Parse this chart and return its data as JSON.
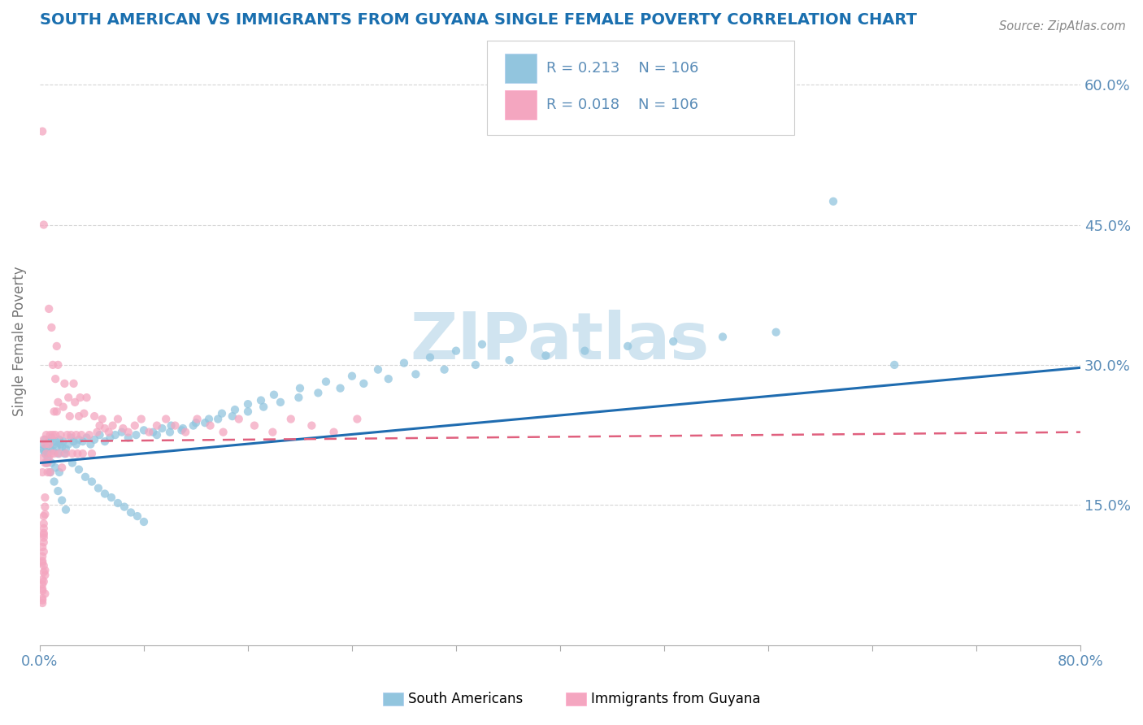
{
  "title": "SOUTH AMERICAN VS IMMIGRANTS FROM GUYANA SINGLE FEMALE POVERTY CORRELATION CHART",
  "source_text": "Source: ZipAtlas.com",
  "ylabel": "Single Female Poverty",
  "xlim": [
    0.0,
    0.8
  ],
  "ylim": [
    0.0,
    0.65
  ],
  "y_ticks": [
    0.15,
    0.3,
    0.45,
    0.6
  ],
  "y_tick_labels": [
    "15.0%",
    "30.0%",
    "45.0%",
    "60.0%"
  ],
  "legend_R": [
    "0.213",
    "0.018"
  ],
  "legend_N": [
    "106",
    "106"
  ],
  "blue_color": "#92c5de",
  "pink_color": "#f4a6c0",
  "blue_line_color": "#1f6cb0",
  "pink_line_color": "#e0607e",
  "watermark": "ZIPatlas",
  "watermark_color": "#d0e4f0",
  "title_color": "#1a6faf",
  "axis_label_color": "#777777",
  "tick_label_color": "#5b8db8",
  "blue_trend": [
    0.195,
    0.297
  ],
  "pink_trend": [
    0.218,
    0.228
  ],
  "south_americans_x": [
    0.002,
    0.003,
    0.004,
    0.005,
    0.006,
    0.007,
    0.008,
    0.009,
    0.01,
    0.011,
    0.012,
    0.013,
    0.014,
    0.015,
    0.016,
    0.017,
    0.018,
    0.019,
    0.02,
    0.022,
    0.024,
    0.026,
    0.028,
    0.03,
    0.033,
    0.036,
    0.039,
    0.042,
    0.046,
    0.05,
    0.054,
    0.058,
    0.063,
    0.068,
    0.074,
    0.08,
    0.087,
    0.094,
    0.101,
    0.109,
    0.118,
    0.127,
    0.137,
    0.148,
    0.16,
    0.172,
    0.185,
    0.199,
    0.214,
    0.231,
    0.249,
    0.268,
    0.289,
    0.311,
    0.335,
    0.361,
    0.389,
    0.419,
    0.452,
    0.487,
    0.525,
    0.566,
    0.61,
    0.657,
    0.005,
    0.008,
    0.011,
    0.014,
    0.017,
    0.02,
    0.025,
    0.03,
    0.035,
    0.04,
    0.045,
    0.05,
    0.055,
    0.06,
    0.065,
    0.07,
    0.075,
    0.08,
    0.09,
    0.1,
    0.11,
    0.12,
    0.13,
    0.14,
    0.15,
    0.16,
    0.17,
    0.18,
    0.2,
    0.22,
    0.24,
    0.26,
    0.28,
    0.3,
    0.32,
    0.34,
    0.006,
    0.009,
    0.012,
    0.015,
    0.003,
    0.004
  ],
  "south_americans_y": [
    0.215,
    0.208,
    0.22,
    0.212,
    0.205,
    0.218,
    0.21,
    0.222,
    0.208,
    0.215,
    0.218,
    0.212,
    0.205,
    0.22,
    0.215,
    0.212,
    0.218,
    0.205,
    0.21,
    0.215,
    0.222,
    0.218,
    0.215,
    0.22,
    0.218,
    0.222,
    0.215,
    0.22,
    0.225,
    0.218,
    0.222,
    0.225,
    0.228,
    0.222,
    0.225,
    0.23,
    0.228,
    0.232,
    0.235,
    0.23,
    0.235,
    0.238,
    0.242,
    0.245,
    0.25,
    0.255,
    0.26,
    0.265,
    0.27,
    0.275,
    0.28,
    0.285,
    0.29,
    0.295,
    0.3,
    0.305,
    0.31,
    0.315,
    0.32,
    0.325,
    0.33,
    0.335,
    0.475,
    0.3,
    0.195,
    0.185,
    0.175,
    0.165,
    0.155,
    0.145,
    0.195,
    0.188,
    0.18,
    0.175,
    0.168,
    0.162,
    0.158,
    0.152,
    0.148,
    0.142,
    0.138,
    0.132,
    0.225,
    0.228,
    0.232,
    0.238,
    0.242,
    0.248,
    0.252,
    0.258,
    0.262,
    0.268,
    0.275,
    0.282,
    0.288,
    0.295,
    0.302,
    0.308,
    0.315,
    0.322,
    0.2,
    0.195,
    0.19,
    0.185,
    0.21,
    0.205
  ],
  "guyana_x": [
    0.001,
    0.002,
    0.002,
    0.003,
    0.003,
    0.004,
    0.004,
    0.005,
    0.005,
    0.006,
    0.006,
    0.007,
    0.007,
    0.007,
    0.008,
    0.008,
    0.009,
    0.009,
    0.01,
    0.01,
    0.011,
    0.011,
    0.012,
    0.012,
    0.013,
    0.013,
    0.014,
    0.014,
    0.015,
    0.016,
    0.017,
    0.018,
    0.019,
    0.02,
    0.021,
    0.022,
    0.023,
    0.024,
    0.025,
    0.026,
    0.027,
    0.028,
    0.029,
    0.03,
    0.031,
    0.032,
    0.033,
    0.034,
    0.036,
    0.038,
    0.04,
    0.042,
    0.044,
    0.046,
    0.048,
    0.05,
    0.053,
    0.056,
    0.06,
    0.064,
    0.068,
    0.073,
    0.078,
    0.084,
    0.09,
    0.097,
    0.104,
    0.112,
    0.121,
    0.131,
    0.141,
    0.153,
    0.165,
    0.179,
    0.193,
    0.209,
    0.226,
    0.244,
    0.002,
    0.003,
    0.004,
    0.002,
    0.003,
    0.004,
    0.002,
    0.003,
    0.002,
    0.003,
    0.004,
    0.003,
    0.002,
    0.003,
    0.002,
    0.003,
    0.002,
    0.004,
    0.003,
    0.002,
    0.003,
    0.004,
    0.002,
    0.003,
    0.002,
    0.003,
    0.002,
    0.004
  ],
  "guyana_y": [
    0.2,
    0.185,
    0.55,
    0.45,
    0.22,
    0.195,
    0.215,
    0.205,
    0.225,
    0.185,
    0.195,
    0.215,
    0.2,
    0.36,
    0.225,
    0.185,
    0.205,
    0.34,
    0.3,
    0.225,
    0.25,
    0.205,
    0.285,
    0.225,
    0.32,
    0.25,
    0.3,
    0.26,
    0.205,
    0.225,
    0.19,
    0.255,
    0.28,
    0.205,
    0.225,
    0.265,
    0.245,
    0.225,
    0.205,
    0.28,
    0.26,
    0.225,
    0.205,
    0.245,
    0.265,
    0.225,
    0.205,
    0.248,
    0.265,
    0.225,
    0.205,
    0.245,
    0.228,
    0.235,
    0.242,
    0.232,
    0.228,
    0.235,
    0.242,
    0.232,
    0.228,
    0.235,
    0.242,
    0.228,
    0.235,
    0.242,
    0.235,
    0.228,
    0.242,
    0.235,
    0.228,
    0.242,
    0.235,
    0.228,
    0.242,
    0.235,
    0.228,
    0.242,
    0.095,
    0.12,
    0.08,
    0.065,
    0.11,
    0.075,
    0.045,
    0.085,
    0.06,
    0.1,
    0.055,
    0.13,
    0.07,
    0.115,
    0.05,
    0.125,
    0.09,
    0.14,
    0.078,
    0.105,
    0.068,
    0.148,
    0.088,
    0.118,
    0.058,
    0.138,
    0.048,
    0.158
  ]
}
